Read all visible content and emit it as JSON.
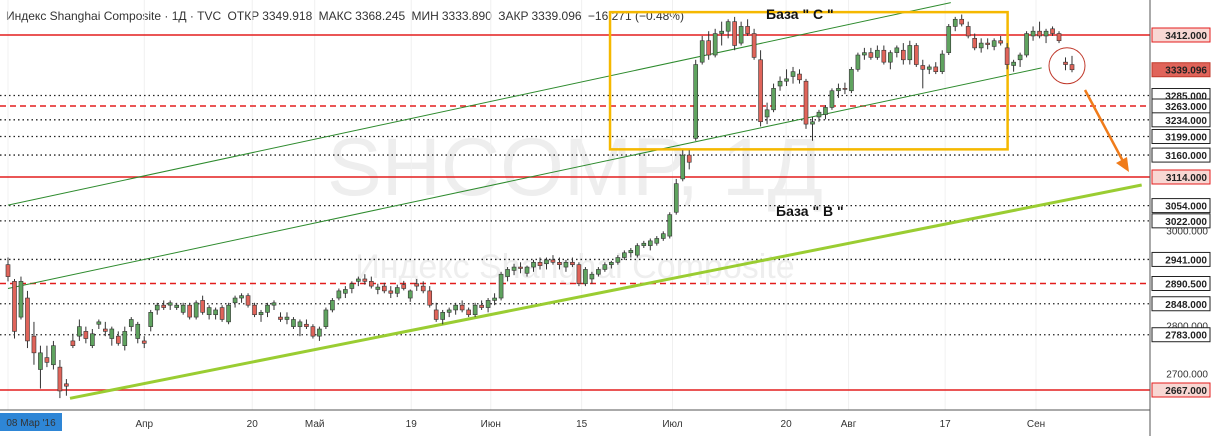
{
  "header": {
    "title": "Индекс Shanghai Composite · 1Д · TVC",
    "open_label": "ОТКР",
    "open": "3349.918",
    "high_label": "МАКС",
    "high": "3368.245",
    "low_label": "МИН",
    "low": "3333.890",
    "close_label": "ЗАКР",
    "close": "3339.096",
    "change": "−16.271 (−0.48%)"
  },
  "watermark": {
    "symbol": "SHCOMP, 1Д",
    "name": "Индекс Shanghai Composite"
  },
  "annotations": {
    "base_c": "База \" C \"",
    "base_b": "База \" B \""
  },
  "colors": {
    "up": "#5fa35f",
    "down": "#e0645a",
    "level_red": "#e31e1e",
    "trend_lime": "#9acd32",
    "channel_green": "#2e8b2e",
    "box": "#f5b800",
    "arrow": "#f07b1a"
  },
  "chart_data": {
    "type": "candlestick",
    "title": "Индекс Shanghai Composite · 1Д · TVC",
    "ylim": [
      2635,
      3480
    ],
    "x_range_days": [
      0,
      176
    ],
    "x_ticks": [
      {
        "day": 0,
        "label": "08 Мар '16",
        "highlight": true
      },
      {
        "day": 24,
        "label": "Апр"
      },
      {
        "day": 43,
        "label": "20"
      },
      {
        "day": 54,
        "label": "Май"
      },
      {
        "day": 71,
        "label": "19"
      },
      {
        "day": 85,
        "label": "Июн"
      },
      {
        "day": 101,
        "label": "15"
      },
      {
        "day": 117,
        "label": "Июл"
      },
      {
        "day": 137,
        "label": "20"
      },
      {
        "day": 148,
        "label": "Авг"
      },
      {
        "day": 165,
        "label": "17"
      },
      {
        "day": 181,
        "label": "Сен"
      }
    ],
    "price_labels": [
      {
        "value": 3412.0,
        "text": "3412.000",
        "kind": "red"
      },
      {
        "value": 3339.096,
        "text": "3339.096",
        "kind": "current"
      },
      {
        "value": 3285.0,
        "text": "3285.000",
        "kind": "dotted"
      },
      {
        "value": 3263.0,
        "text": "3263.000",
        "kind": "dashed"
      },
      {
        "value": 3234.0,
        "text": "3234.000",
        "kind": "dotted"
      },
      {
        "value": 3199.0,
        "text": "3199.000",
        "kind": "dotted"
      },
      {
        "value": 3160.0,
        "text": "3160.000",
        "kind": "dotted"
      },
      {
        "value": 3114.0,
        "text": "3114.000",
        "kind": "red"
      },
      {
        "value": 3054.0,
        "text": "3054.000",
        "kind": "dotted"
      },
      {
        "value": 3022.0,
        "text": "3022.000",
        "kind": "dotted"
      },
      {
        "value": 2941.0,
        "text": "2941.000",
        "kind": "dotted"
      },
      {
        "value": 2890.5,
        "text": "2890.500",
        "kind": "dashed"
      },
      {
        "value": 2848.0,
        "text": "2848.000",
        "kind": "dotted"
      },
      {
        "value": 2783.0,
        "text": "2783.000",
        "kind": "dotted"
      },
      {
        "value": 2667.0,
        "text": "2667.000",
        "kind": "red"
      }
    ],
    "faint_ticks": [
      {
        "value": 3000,
        "text": "3000.000"
      },
      {
        "value": 2800,
        "text": "2800.000"
      },
      {
        "value": 2700,
        "text": "2700.000"
      }
    ],
    "trendline": {
      "start": {
        "day": 0,
        "value": 2660
      },
      "end": {
        "day": 182,
        "value": 3114
      }
    },
    "channel": {
      "upper": {
        "start": {
          "day": 0,
          "value": 3055
        },
        "end": {
          "day": 166,
          "value": 3480
        }
      },
      "lower": {
        "start": {
          "day": 0,
          "value": 2880
        },
        "end": {
          "day": 182,
          "value": 3343
        }
      }
    },
    "box": {
      "day_start": 106,
      "day_end": 176,
      "value_top": 3460,
      "value_bottom": 3172
    },
    "candles": [
      {
        "o": 2930,
        "h": 2945,
        "l": 2895,
        "c": 2905
      },
      {
        "o": 2895,
        "h": 2900,
        "l": 2775,
        "c": 2790
      },
      {
        "o": 2820,
        "h": 2905,
        "l": 2815,
        "c": 2895
      },
      {
        "o": 2860,
        "h": 2875,
        "l": 2755,
        "c": 2770
      },
      {
        "o": 2780,
        "h": 2810,
        "l": 2720,
        "c": 2745
      },
      {
        "o": 2710,
        "h": 2760,
        "l": 2670,
        "c": 2745
      },
      {
        "o": 2735,
        "h": 2760,
        "l": 2715,
        "c": 2725
      },
      {
        "o": 2720,
        "h": 2770,
        "l": 2710,
        "c": 2760
      },
      {
        "o": 2715,
        "h": 2730,
        "l": 2650,
        "c": 2665
      },
      {
        "o": 2680,
        "h": 2690,
        "l": 2655,
        "c": 2675
      },
      {
        "o": 2770,
        "h": 2785,
        "l": 2755,
        "c": 2760
      },
      {
        "o": 2780,
        "h": 2815,
        "l": 2770,
        "c": 2800
      },
      {
        "o": 2790,
        "h": 2800,
        "l": 2765,
        "c": 2775
      },
      {
        "o": 2760,
        "h": 2795,
        "l": 2755,
        "c": 2785
      },
      {
        "o": 2805,
        "h": 2815,
        "l": 2795,
        "c": 2810
      },
      {
        "o": 2795,
        "h": 2810,
        "l": 2780,
        "c": 2790
      },
      {
        "o": 2775,
        "h": 2800,
        "l": 2760,
        "c": 2795
      },
      {
        "o": 2780,
        "h": 2790,
        "l": 2760,
        "c": 2765
      },
      {
        "o": 2760,
        "h": 2800,
        "l": 2750,
        "c": 2790
      },
      {
        "o": 2800,
        "h": 2820,
        "l": 2790,
        "c": 2815
      },
      {
        "o": 2775,
        "h": 2810,
        "l": 2765,
        "c": 2805
      },
      {
        "o": 2770,
        "h": 2780,
        "l": 2755,
        "c": 2765
      },
      {
        "o": 2800,
        "h": 2835,
        "l": 2790,
        "c": 2830
      },
      {
        "o": 2835,
        "h": 2850,
        "l": 2825,
        "c": 2845
      },
      {
        "o": 2845,
        "h": 2855,
        "l": 2835,
        "c": 2840
      },
      {
        "o": 2845,
        "h": 2855,
        "l": 2835,
        "c": 2850
      },
      {
        "o": 2840,
        "h": 2850,
        "l": 2835,
        "c": 2845
      },
      {
        "o": 2830,
        "h": 2850,
        "l": 2825,
        "c": 2845
      },
      {
        "o": 2845,
        "h": 2850,
        "l": 2815,
        "c": 2820
      },
      {
        "o": 2820,
        "h": 2855,
        "l": 2815,
        "c": 2850
      },
      {
        "o": 2855,
        "h": 2865,
        "l": 2825,
        "c": 2830
      },
      {
        "o": 2825,
        "h": 2845,
        "l": 2815,
        "c": 2840
      },
      {
        "o": 2825,
        "h": 2840,
        "l": 2815,
        "c": 2835
      },
      {
        "o": 2840,
        "h": 2845,
        "l": 2810,
        "c": 2815
      },
      {
        "o": 2810,
        "h": 2850,
        "l": 2805,
        "c": 2845
      },
      {
        "o": 2850,
        "h": 2865,
        "l": 2840,
        "c": 2860
      },
      {
        "o": 2860,
        "h": 2870,
        "l": 2850,
        "c": 2865
      },
      {
        "o": 2865,
        "h": 2870,
        "l": 2840,
        "c": 2845
      },
      {
        "o": 2845,
        "h": 2850,
        "l": 2820,
        "c": 2825
      },
      {
        "o": 2825,
        "h": 2835,
        "l": 2810,
        "c": 2830
      },
      {
        "o": 2830,
        "h": 2850,
        "l": 2820,
        "c": 2845
      },
      {
        "o": 2845,
        "h": 2855,
        "l": 2835,
        "c": 2850
      },
      {
        "o": 2820,
        "h": 2830,
        "l": 2810,
        "c": 2815
      },
      {
        "o": 2815,
        "h": 2830,
        "l": 2805,
        "c": 2820
      },
      {
        "o": 2800,
        "h": 2820,
        "l": 2795,
        "c": 2815
      },
      {
        "o": 2800,
        "h": 2815,
        "l": 2780,
        "c": 2810
      },
      {
        "o": 2805,
        "h": 2815,
        "l": 2795,
        "c": 2800
      },
      {
        "o": 2800,
        "h": 2805,
        "l": 2775,
        "c": 2780
      },
      {
        "o": 2780,
        "h": 2800,
        "l": 2770,
        "c": 2795
      },
      {
        "o": 2800,
        "h": 2840,
        "l": 2795,
        "c": 2835
      },
      {
        "o": 2835,
        "h": 2860,
        "l": 2830,
        "c": 2855
      },
      {
        "o": 2860,
        "h": 2880,
        "l": 2855,
        "c": 2875
      },
      {
        "o": 2870,
        "h": 2885,
        "l": 2860,
        "c": 2878
      },
      {
        "o": 2880,
        "h": 2895,
        "l": 2870,
        "c": 2890
      },
      {
        "o": 2895,
        "h": 2905,
        "l": 2885,
        "c": 2900
      },
      {
        "o": 2900,
        "h": 2910,
        "l": 2888,
        "c": 2895
      },
      {
        "o": 2895,
        "h": 2905,
        "l": 2880,
        "c": 2885
      },
      {
        "o": 2878,
        "h": 2890,
        "l": 2868,
        "c": 2883
      },
      {
        "o": 2885,
        "h": 2892,
        "l": 2870,
        "c": 2875
      },
      {
        "o": 2875,
        "h": 2885,
        "l": 2860,
        "c": 2870
      },
      {
        "o": 2870,
        "h": 2888,
        "l": 2862,
        "c": 2882
      },
      {
        "o": 2888,
        "h": 2896,
        "l": 2876,
        "c": 2880
      },
      {
        "o": 2860,
        "h": 2878,
        "l": 2852,
        "c": 2875
      },
      {
        "o": 2890,
        "h": 2900,
        "l": 2875,
        "c": 2885
      },
      {
        "o": 2885,
        "h": 2895,
        "l": 2870,
        "c": 2875
      },
      {
        "o": 2875,
        "h": 2885,
        "l": 2840,
        "c": 2845
      },
      {
        "o": 2835,
        "h": 2850,
        "l": 2810,
        "c": 2815
      },
      {
        "o": 2815,
        "h": 2835,
        "l": 2805,
        "c": 2830
      },
      {
        "o": 2830,
        "h": 2840,
        "l": 2820,
        "c": 2835
      },
      {
        "o": 2835,
        "h": 2850,
        "l": 2825,
        "c": 2845
      },
      {
        "o": 2845,
        "h": 2855,
        "l": 2830,
        "c": 2835
      },
      {
        "o": 2835,
        "h": 2840,
        "l": 2820,
        "c": 2825
      },
      {
        "o": 2825,
        "h": 2850,
        "l": 2820,
        "c": 2845
      },
      {
        "o": 2845,
        "h": 2855,
        "l": 2835,
        "c": 2840
      },
      {
        "o": 2840,
        "h": 2860,
        "l": 2830,
        "c": 2855
      },
      {
        "o": 2855,
        "h": 2870,
        "l": 2845,
        "c": 2860
      },
      {
        "o": 2860,
        "h": 2915,
        "l": 2855,
        "c": 2910
      },
      {
        "o": 2905,
        "h": 2925,
        "l": 2895,
        "c": 2920
      },
      {
        "o": 2918,
        "h": 2932,
        "l": 2908,
        "c": 2925
      },
      {
        "o": 2925,
        "h": 2935,
        "l": 2912,
        "c": 2922
      },
      {
        "o": 2912,
        "h": 2928,
        "l": 2905,
        "c": 2925
      },
      {
        "o": 2925,
        "h": 2940,
        "l": 2915,
        "c": 2935
      },
      {
        "o": 2935,
        "h": 2945,
        "l": 2920,
        "c": 2928
      },
      {
        "o": 2932,
        "h": 2945,
        "l": 2920,
        "c": 2940
      },
      {
        "o": 2940,
        "h": 2950,
        "l": 2930,
        "c": 2935
      },
      {
        "o": 2935,
        "h": 2945,
        "l": 2920,
        "c": 2930
      },
      {
        "o": 2925,
        "h": 2940,
        "l": 2915,
        "c": 2935
      },
      {
        "o": 2935,
        "h": 2945,
        "l": 2925,
        "c": 2930
      },
      {
        "o": 2930,
        "h": 2935,
        "l": 2885,
        "c": 2890
      },
      {
        "o": 2890,
        "h": 2925,
        "l": 2885,
        "c": 2920
      },
      {
        "o": 2900,
        "h": 2915,
        "l": 2890,
        "c": 2910
      },
      {
        "o": 2910,
        "h": 2925,
        "l": 2905,
        "c": 2920
      },
      {
        "o": 2920,
        "h": 2935,
        "l": 2915,
        "c": 2930
      },
      {
        "o": 2930,
        "h": 2938,
        "l": 2922,
        "c": 2935
      },
      {
        "o": 2935,
        "h": 2950,
        "l": 2930,
        "c": 2945
      },
      {
        "o": 2945,
        "h": 2960,
        "l": 2940,
        "c": 2955
      },
      {
        "o": 2955,
        "h": 2965,
        "l": 2945,
        "c": 2960
      },
      {
        "o": 2950,
        "h": 2975,
        "l": 2945,
        "c": 2970
      },
      {
        "o": 2970,
        "h": 2980,
        "l": 2965,
        "c": 2975
      },
      {
        "o": 2970,
        "h": 2985,
        "l": 2960,
        "c": 2980
      },
      {
        "o": 2975,
        "h": 2990,
        "l": 2970,
        "c": 2985
      },
      {
        "o": 2985,
        "h": 3000,
        "l": 2980,
        "c": 2995
      },
      {
        "o": 2990,
        "h": 3040,
        "l": 2985,
        "c": 3035
      },
      {
        "o": 3040,
        "h": 3110,
        "l": 3035,
        "c": 3100
      },
      {
        "o": 3110,
        "h": 3170,
        "l": 3105,
        "c": 3160
      },
      {
        "o": 3160,
        "h": 3170,
        "l": 3130,
        "c": 3145
      },
      {
        "o": 3195,
        "h": 3360,
        "l": 3190,
        "c": 3350
      },
      {
        "o": 3355,
        "h": 3410,
        "l": 3350,
        "c": 3400
      },
      {
        "o": 3400,
        "h": 3420,
        "l": 3360,
        "c": 3370
      },
      {
        "o": 3370,
        "h": 3425,
        "l": 3365,
        "c": 3415
      },
      {
        "o": 3415,
        "h": 3440,
        "l": 3390,
        "c": 3420
      },
      {
        "o": 3420,
        "h": 3445,
        "l": 3405,
        "c": 3440
      },
      {
        "o": 3440,
        "h": 3450,
        "l": 3380,
        "c": 3390
      },
      {
        "o": 3395,
        "h": 3440,
        "l": 3390,
        "c": 3430
      },
      {
        "o": 3430,
        "h": 3445,
        "l": 3410,
        "c": 3415
      },
      {
        "o": 3415,
        "h": 3425,
        "l": 3360,
        "c": 3365
      },
      {
        "o": 3360,
        "h": 3380,
        "l": 3220,
        "c": 3230
      },
      {
        "o": 3240,
        "h": 3270,
        "l": 3225,
        "c": 3255
      },
      {
        "o": 3255,
        "h": 3310,
        "l": 3250,
        "c": 3300
      },
      {
        "o": 3305,
        "h": 3325,
        "l": 3295,
        "c": 3315
      },
      {
        "o": 3315,
        "h": 3340,
        "l": 3305,
        "c": 3320
      },
      {
        "o": 3325,
        "h": 3345,
        "l": 3310,
        "c": 3335
      },
      {
        "o": 3330,
        "h": 3340,
        "l": 3310,
        "c": 3318
      },
      {
        "o": 3315,
        "h": 3320,
        "l": 3215,
        "c": 3225
      },
      {
        "o": 3225,
        "h": 3240,
        "l": 3190,
        "c": 3230
      },
      {
        "o": 3240,
        "h": 3255,
        "l": 3230,
        "c": 3250
      },
      {
        "o": 3245,
        "h": 3265,
        "l": 3235,
        "c": 3260
      },
      {
        "o": 3260,
        "h": 3300,
        "l": 3255,
        "c": 3295
      },
      {
        "o": 3295,
        "h": 3310,
        "l": 3280,
        "c": 3300
      },
      {
        "o": 3300,
        "h": 3312,
        "l": 3288,
        "c": 3298
      },
      {
        "o": 3295,
        "h": 3345,
        "l": 3290,
        "c": 3340
      },
      {
        "o": 3340,
        "h": 3375,
        "l": 3335,
        "c": 3370
      },
      {
        "o": 3370,
        "h": 3385,
        "l": 3360,
        "c": 3375
      },
      {
        "o": 3375,
        "h": 3385,
        "l": 3360,
        "c": 3365
      },
      {
        "o": 3365,
        "h": 3390,
        "l": 3360,
        "c": 3380
      },
      {
        "o": 3380,
        "h": 3390,
        "l": 3350,
        "c": 3355
      },
      {
        "o": 3355,
        "h": 3380,
        "l": 3340,
        "c": 3375
      },
      {
        "o": 3375,
        "h": 3390,
        "l": 3365,
        "c": 3385
      },
      {
        "o": 3380,
        "h": 3395,
        "l": 3350,
        "c": 3360
      },
      {
        "o": 3360,
        "h": 3400,
        "l": 3350,
        "c": 3390
      },
      {
        "o": 3390,
        "h": 3395,
        "l": 3345,
        "c": 3350
      },
      {
        "o": 3348,
        "h": 3360,
        "l": 3300,
        "c": 3340
      },
      {
        "o": 3340,
        "h": 3350,
        "l": 3330,
        "c": 3345
      },
      {
        "o": 3345,
        "h": 3355,
        "l": 3330,
        "c": 3335
      },
      {
        "o": 3335,
        "h": 3380,
        "l": 3330,
        "c": 3372
      },
      {
        "o": 3375,
        "h": 3435,
        "l": 3370,
        "c": 3430
      },
      {
        "o": 3430,
        "h": 3450,
        "l": 3420,
        "c": 3445
      },
      {
        "o": 3445,
        "h": 3455,
        "l": 3430,
        "c": 3435
      },
      {
        "o": 3430,
        "h": 3440,
        "l": 3405,
        "c": 3410
      },
      {
        "o": 3405,
        "h": 3415,
        "l": 3380,
        "c": 3385
      },
      {
        "o": 3385,
        "h": 3405,
        "l": 3375,
        "c": 3395
      },
      {
        "o": 3395,
        "h": 3405,
        "l": 3382,
        "c": 3392
      },
      {
        "o": 3388,
        "h": 3405,
        "l": 3380,
        "c": 3400
      },
      {
        "o": 3400,
        "h": 3410,
        "l": 3390,
        "c": 3395
      },
      {
        "o": 3385,
        "h": 3395,
        "l": 3340,
        "c": 3350
      },
      {
        "o": 3348,
        "h": 3360,
        "l": 3335,
        "c": 3355
      },
      {
        "o": 3360,
        "h": 3375,
        "l": 3345,
        "c": 3370
      },
      {
        "o": 3370,
        "h": 3420,
        "l": 3365,
        "c": 3415
      },
      {
        "o": 3410,
        "h": 3430,
        "l": 3400,
        "c": 3420
      },
      {
        "o": 3420,
        "h": 3440,
        "l": 3405,
        "c": 3410
      },
      {
        "o": 3410,
        "h": 3425,
        "l": 3395,
        "c": 3420
      },
      {
        "o": 3425,
        "h": 3430,
        "l": 3410,
        "c": 3415
      },
      {
        "o": 3415,
        "h": 3420,
        "l": 3395,
        "c": 3400
      },
      {
        "o": 3355,
        "h": 3365,
        "l": 3338,
        "c": 3350
      },
      {
        "o": 3349.918,
        "h": 3368.245,
        "l": 3333.89,
        "c": 3339.096
      }
    ]
  }
}
